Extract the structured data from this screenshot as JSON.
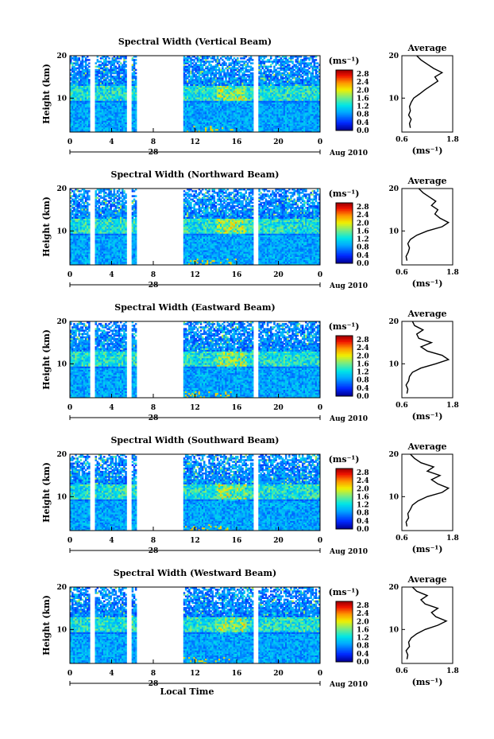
{
  "figure": {
    "xlabel": "Local Time",
    "date_label": "Aug 2010",
    "day_label": "28",
    "colorbar_unit": "(ms⁻¹)",
    "average_title": "Average",
    "average_xlabel": "(ms⁻¹)"
  },
  "chart_data": [
    {
      "type": "heatmap",
      "title": "Spectral Width (Vertical Beam)",
      "ylabel": "Height (km)",
      "x_ticks": [
        "0",
        "4",
        "8",
        "12",
        "16",
        "20",
        "0"
      ],
      "xlim": [
        0,
        24
      ],
      "y_ticks": [
        "20",
        "10"
      ],
      "ylim": [
        2,
        20
      ],
      "colorbar_ticks": [
        "2.8",
        "2.4",
        "2.0",
        "1.6",
        "1.2",
        "0.8",
        "0.4",
        "0.0"
      ],
      "colorbar_range": [
        0,
        3.0
      ],
      "data_gaps_hours": [
        [
          2.0,
          2.4
        ],
        [
          5.5,
          5.9
        ],
        [
          6.4,
          10.8
        ],
        [
          17.6,
          18.1
        ]
      ],
      "average_profile": {
        "xlim": [
          0.6,
          1.8
        ],
        "x_ticks": [
          "0.6",
          "1.8"
        ],
        "y_ticks": [
          "20",
          "10"
        ],
        "points": [
          [
            0.8,
            3
          ],
          [
            0.78,
            4
          ],
          [
            0.82,
            5
          ],
          [
            0.76,
            6
          ],
          [
            0.8,
            7
          ],
          [
            0.78,
            8
          ],
          [
            0.82,
            9
          ],
          [
            0.88,
            10
          ],
          [
            1.02,
            11
          ],
          [
            1.15,
            12
          ],
          [
            1.3,
            13
          ],
          [
            1.45,
            14
          ],
          [
            1.38,
            15
          ],
          [
            1.55,
            16
          ],
          [
            1.35,
            17
          ],
          [
            1.2,
            18
          ],
          [
            1.05,
            19
          ],
          [
            0.95,
            20
          ]
        ]
      }
    },
    {
      "type": "heatmap",
      "title": "Spectral Width (Northward Beam)",
      "ylabel": "Height (km)",
      "x_ticks": [
        "0",
        "4",
        "8",
        "12",
        "16",
        "20",
        "0"
      ],
      "xlim": [
        0,
        24
      ],
      "y_ticks": [
        "20",
        "10"
      ],
      "ylim": [
        2,
        20
      ],
      "colorbar_ticks": [
        "2.8",
        "2.4",
        "2.0",
        "1.6",
        "1.2",
        "0.8",
        "0.4",
        "0.0"
      ],
      "colorbar_range": [
        0,
        3.0
      ],
      "data_gaps_hours": [
        [
          2.0,
          2.4
        ],
        [
          5.5,
          5.9
        ],
        [
          6.4,
          10.8
        ],
        [
          17.6,
          18.1
        ]
      ],
      "average_profile": {
        "xlim": [
          0.6,
          1.8
        ],
        "x_ticks": [
          "0.6",
          "1.8"
        ],
        "y_ticks": [
          "20",
          "10"
        ],
        "points": [
          [
            0.72,
            3
          ],
          [
            0.7,
            4
          ],
          [
            0.75,
            5
          ],
          [
            0.78,
            6
          ],
          [
            0.74,
            7
          ],
          [
            0.8,
            8
          ],
          [
            0.95,
            9
          ],
          [
            1.2,
            10
          ],
          [
            1.55,
            11
          ],
          [
            1.7,
            12
          ],
          [
            1.5,
            13
          ],
          [
            1.38,
            14
          ],
          [
            1.45,
            15
          ],
          [
            1.3,
            16
          ],
          [
            1.4,
            17
          ],
          [
            1.25,
            18
          ],
          [
            1.1,
            19
          ],
          [
            1.0,
            20
          ]
        ]
      }
    },
    {
      "type": "heatmap",
      "title": "Spectral Width (Eastward Beam)",
      "ylabel": "Height (km)",
      "x_ticks": [
        "0",
        "4",
        "8",
        "12",
        "16",
        "20",
        "0"
      ],
      "xlim": [
        0,
        24
      ],
      "y_ticks": [
        "20",
        "10"
      ],
      "ylim": [
        2,
        20
      ],
      "colorbar_ticks": [
        "2.8",
        "2.4",
        "2.0",
        "1.6",
        "1.2",
        "0.8",
        "0.4",
        "0.0"
      ],
      "colorbar_range": [
        0,
        3.0
      ],
      "data_gaps_hours": [
        [
          2.0,
          2.4
        ],
        [
          5.5,
          5.9
        ],
        [
          6.4,
          10.8
        ],
        [
          17.6,
          18.1
        ]
      ],
      "average_profile": {
        "xlim": [
          0.6,
          1.8
        ],
        "x_ticks": [
          "0.6",
          "1.8"
        ],
        "y_ticks": [
          "20",
          "10"
        ],
        "points": [
          [
            0.72,
            3
          ],
          [
            0.74,
            4
          ],
          [
            0.7,
            5
          ],
          [
            0.76,
            6
          ],
          [
            0.78,
            7
          ],
          [
            0.85,
            8
          ],
          [
            1.05,
            9
          ],
          [
            1.4,
            10
          ],
          [
            1.7,
            11
          ],
          [
            1.55,
            12
          ],
          [
            1.2,
            13
          ],
          [
            1.05,
            14
          ],
          [
            1.3,
            15
          ],
          [
            1.0,
            16
          ],
          [
            0.95,
            17
          ],
          [
            1.1,
            18
          ],
          [
            0.9,
            19
          ],
          [
            0.85,
            20
          ]
        ]
      }
    },
    {
      "type": "heatmap",
      "title": "Spectral Width (Southward Beam)",
      "ylabel": "Height (km)",
      "x_ticks": [
        "0",
        "4",
        "8",
        "12",
        "16",
        "20",
        "0"
      ],
      "xlim": [
        0,
        24
      ],
      "y_ticks": [
        "20",
        "10"
      ],
      "ylim": [
        2,
        20
      ],
      "colorbar_ticks": [
        "2.8",
        "2.4",
        "2.0",
        "1.6",
        "1.2",
        "0.8",
        "0.4",
        "0.0"
      ],
      "colorbar_range": [
        0,
        3.0
      ],
      "data_gaps_hours": [
        [
          2.0,
          2.4
        ],
        [
          5.5,
          5.9
        ],
        [
          6.4,
          10.8
        ],
        [
          17.6,
          18.1
        ]
      ],
      "average_profile": {
        "xlim": [
          0.6,
          1.8
        ],
        "x_ticks": [
          "0.6",
          "1.8"
        ],
        "y_ticks": [
          "20",
          "10"
        ],
        "points": [
          [
            0.72,
            3
          ],
          [
            0.7,
            4
          ],
          [
            0.76,
            5
          ],
          [
            0.74,
            6
          ],
          [
            0.8,
            7
          ],
          [
            0.85,
            8
          ],
          [
            0.98,
            9
          ],
          [
            1.2,
            10
          ],
          [
            1.55,
            11
          ],
          [
            1.7,
            12
          ],
          [
            1.45,
            13
          ],
          [
            1.3,
            14
          ],
          [
            1.5,
            15
          ],
          [
            1.2,
            16
          ],
          [
            1.35,
            17
          ],
          [
            1.05,
            18
          ],
          [
            0.9,
            19
          ],
          [
            0.8,
            20
          ]
        ]
      }
    },
    {
      "type": "heatmap",
      "title": "Spectral Width (Westward Beam)",
      "ylabel": "Height (km)",
      "x_ticks": [
        "0",
        "4",
        "8",
        "12",
        "16",
        "20",
        "0"
      ],
      "xlim": [
        0,
        24
      ],
      "y_ticks": [
        "20",
        "10"
      ],
      "ylim": [
        2,
        20
      ],
      "colorbar_ticks": [
        "2.8",
        "2.4",
        "2.0",
        "1.6",
        "1.2",
        "0.8",
        "0.4",
        "0.0"
      ],
      "colorbar_range": [
        0,
        3.0
      ],
      "data_gaps_hours": [
        [
          2.0,
          2.4
        ],
        [
          5.5,
          5.9
        ],
        [
          6.4,
          10.8
        ],
        [
          17.6,
          18.1
        ]
      ],
      "average_profile": {
        "xlim": [
          0.6,
          1.8
        ],
        "x_ticks": [
          "0.6",
          "1.8"
        ],
        "y_ticks": [
          "20",
          "10"
        ],
        "points": [
          [
            0.72,
            3
          ],
          [
            0.74,
            4
          ],
          [
            0.7,
            5
          ],
          [
            0.78,
            6
          ],
          [
            0.76,
            7
          ],
          [
            0.82,
            8
          ],
          [
            0.95,
            9
          ],
          [
            1.15,
            10
          ],
          [
            1.45,
            11
          ],
          [
            1.65,
            12
          ],
          [
            1.4,
            13
          ],
          [
            1.3,
            14
          ],
          [
            1.45,
            15
          ],
          [
            1.15,
            16
          ],
          [
            1.05,
            17
          ],
          [
            1.2,
            18
          ],
          [
            0.95,
            19
          ],
          [
            0.85,
            20
          ]
        ]
      }
    }
  ]
}
